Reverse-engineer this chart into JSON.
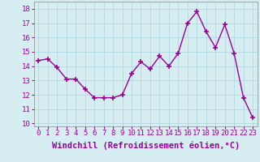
{
  "x": [
    0,
    1,
    2,
    3,
    4,
    5,
    6,
    7,
    8,
    9,
    10,
    11,
    12,
    13,
    14,
    15,
    16,
    17,
    18,
    19,
    20,
    21,
    22,
    23
  ],
  "y": [
    14.4,
    14.5,
    13.9,
    13.1,
    13.1,
    12.4,
    11.8,
    11.8,
    11.8,
    12.0,
    13.5,
    14.3,
    13.8,
    14.7,
    14.0,
    14.9,
    17.0,
    17.8,
    16.4,
    15.3,
    16.9,
    14.9,
    11.8,
    10.4
  ],
  "line_color": "#990099",
  "marker": "+",
  "marker_size": 4,
  "marker_linewidth": 1.2,
  "background_color": "#d6eef2",
  "grid_color": "#b0d8e0",
  "xlabel": "Windchill (Refroidissement éolien,°C)",
  "xlabel_fontsize": 7.5,
  "ylim": [
    9.8,
    18.5
  ],
  "yticks": [
    10,
    11,
    12,
    13,
    14,
    15,
    16,
    17,
    18
  ],
  "xticks": [
    0,
    1,
    2,
    3,
    4,
    5,
    6,
    7,
    8,
    9,
    10,
    11,
    12,
    13,
    14,
    15,
    16,
    17,
    18,
    19,
    20,
    21,
    22,
    23
  ],
  "tick_fontsize": 6.5,
  "linewidth": 1.0
}
